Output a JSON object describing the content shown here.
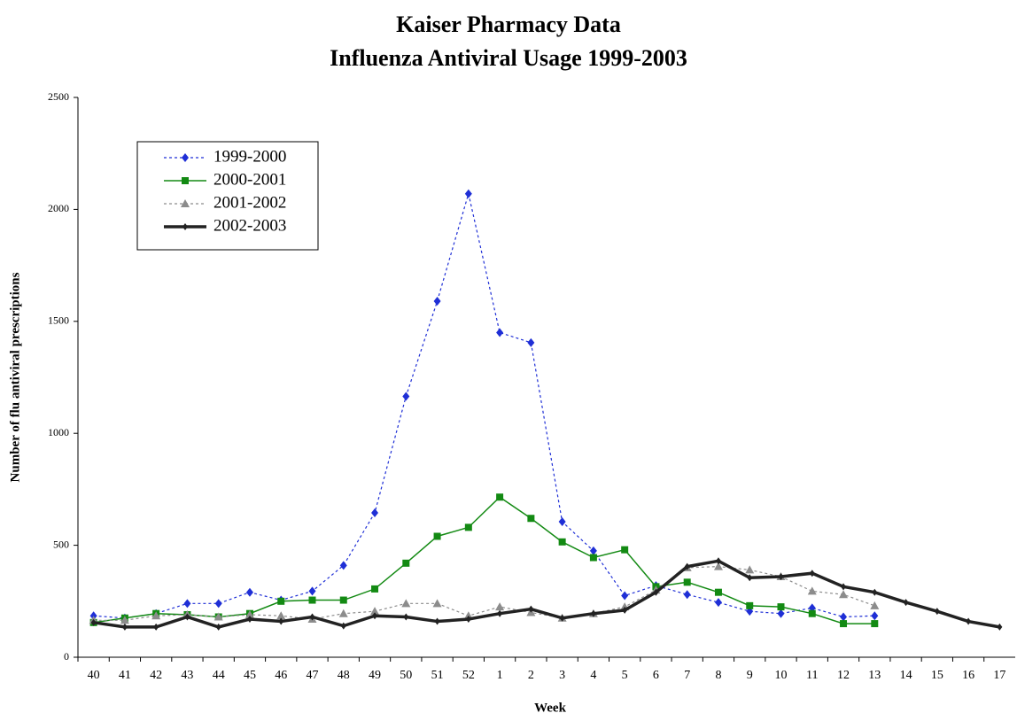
{
  "chart_data": {
    "type": "line",
    "title": "Kaiser Pharmacy Data",
    "subtitle": "Influenza Antiviral Usage 1999-2003",
    "x_label": "Week",
    "y_label": "Number of flu antiviral prescriptions",
    "categories": [
      "40",
      "41",
      "42",
      "43",
      "44",
      "45",
      "46",
      "47",
      "48",
      "49",
      "50",
      "51",
      "52",
      "1",
      "2",
      "3",
      "4",
      "5",
      "6",
      "7",
      "8",
      "9",
      "10",
      "11",
      "12",
      "13",
      "14",
      "15",
      "16",
      "17"
    ],
    "ylim": [
      0,
      2500
    ],
    "yticks": [
      0,
      500,
      1000,
      1500,
      2000,
      2500
    ],
    "grid": false,
    "legend": "upper left",
    "series": [
      {
        "name": "1999-2000",
        "color": "#1f2fd6",
        "marker": "diamond",
        "dashed": true,
        "width": 1.2,
        "values": [
          185,
          175,
          195,
          240,
          240,
          290,
          255,
          295,
          410,
          645,
          1165,
          1590,
          2070,
          1450,
          1405,
          605,
          475,
          275,
          320,
          280,
          245,
          205,
          195,
          220,
          180,
          185,
          null,
          null,
          null,
          null
        ]
      },
      {
        "name": "2000-2001",
        "color": "#138a13",
        "marker": "square",
        "dashed": false,
        "width": 1.5,
        "values": [
          155,
          175,
          195,
          190,
          180,
          195,
          250,
          255,
          255,
          305,
          420,
          540,
          580,
          715,
          620,
          515,
          445,
          480,
          315,
          335,
          290,
          230,
          225,
          195,
          150,
          150,
          null,
          null,
          null,
          null
        ]
      },
      {
        "name": "2001-2002",
        "color": "#8c8c8c",
        "marker": "triangle",
        "dashed": true,
        "width": 1.2,
        "values": [
          165,
          165,
          185,
          190,
          180,
          190,
          185,
          170,
          195,
          205,
          240,
          240,
          185,
          225,
          200,
          175,
          195,
          225,
          300,
          400,
          405,
          390,
          360,
          295,
          280,
          230,
          null,
          null,
          null,
          null
        ]
      },
      {
        "name": "2002-2003",
        "color": "#222222",
        "marker": "dot",
        "dashed": false,
        "width": 3.5,
        "values": [
          155,
          135,
          135,
          180,
          135,
          170,
          160,
          180,
          140,
          185,
          180,
          160,
          170,
          195,
          215,
          175,
          195,
          210,
          290,
          405,
          430,
          355,
          360,
          375,
          315,
          290,
          245,
          205,
          160,
          135
        ]
      }
    ]
  }
}
